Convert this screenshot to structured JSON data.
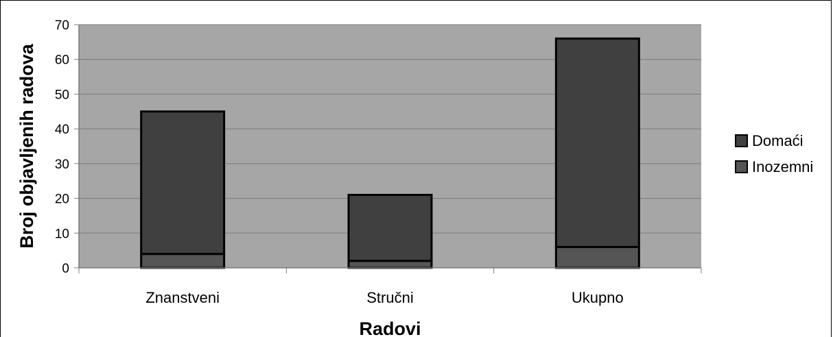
{
  "chart_data": {
    "type": "bar",
    "stacked": true,
    "categories": [
      "Znanstveni",
      "Stručni",
      "Ukupno"
    ],
    "series": [
      {
        "name": "Inozemni",
        "values": [
          4,
          2,
          6
        ],
        "color": "#555555"
      },
      {
        "name": "Domaći",
        "values": [
          41,
          19,
          60
        ],
        "color": "#404040"
      }
    ],
    "title": "",
    "xlabel": "Radovi",
    "ylabel": "Broj objavljenih radova",
    "ylim": [
      0,
      70
    ],
    "yticks": [
      0,
      10,
      20,
      30,
      40,
      50,
      60,
      70
    ],
    "grid": true,
    "plot_background": "#a6a6a6",
    "legend": {
      "placement": "right",
      "entries": [
        "Domaći",
        "Inozemni"
      ]
    }
  }
}
